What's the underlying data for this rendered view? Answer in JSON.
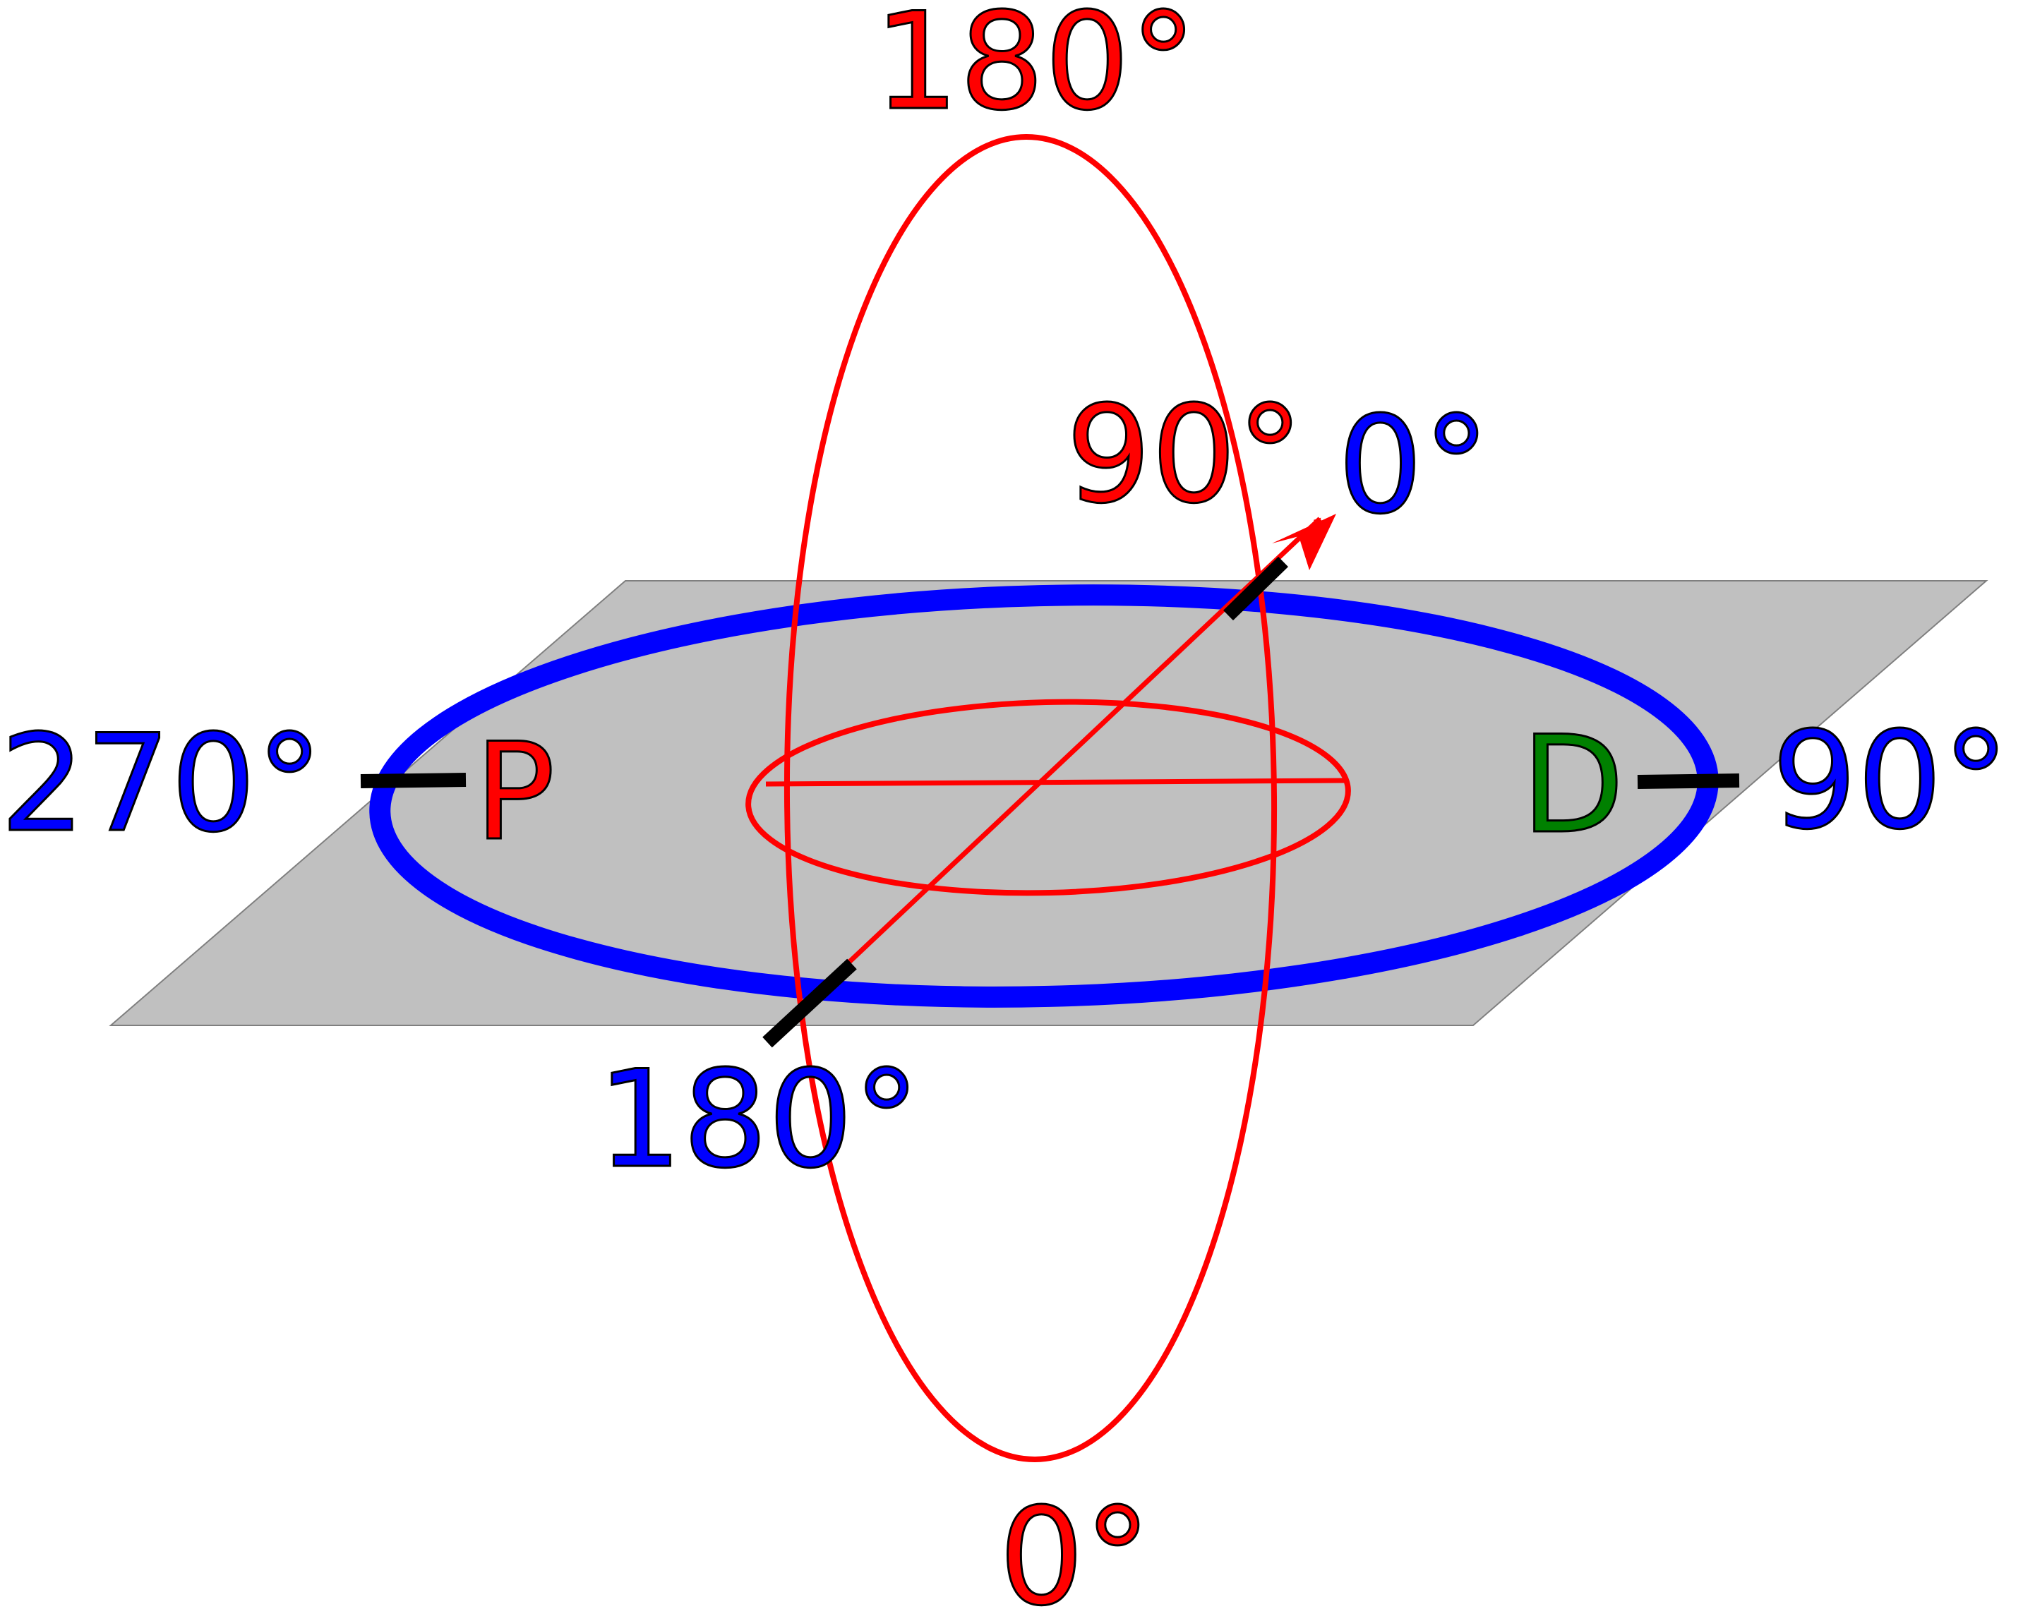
{
  "colors": {
    "plane_fill": "#c0c0c0",
    "plane_stroke": "#7f7f7f",
    "azimuth_ring": "#0000ff",
    "elevation_ring": "#ff0000",
    "marker": "#000000",
    "label_red": "#ff0000",
    "label_blue": "#0000ff",
    "label_green": "#008000"
  },
  "labels": {
    "elevation_top": "180°",
    "elevation_bottom": "0°",
    "elevation_90": "90°",
    "azimuth_front": "0°",
    "azimuth_right": "90°",
    "azimuth_back": "180°",
    "azimuth_left": "270°",
    "proximal": "P",
    "distal": "D"
  }
}
